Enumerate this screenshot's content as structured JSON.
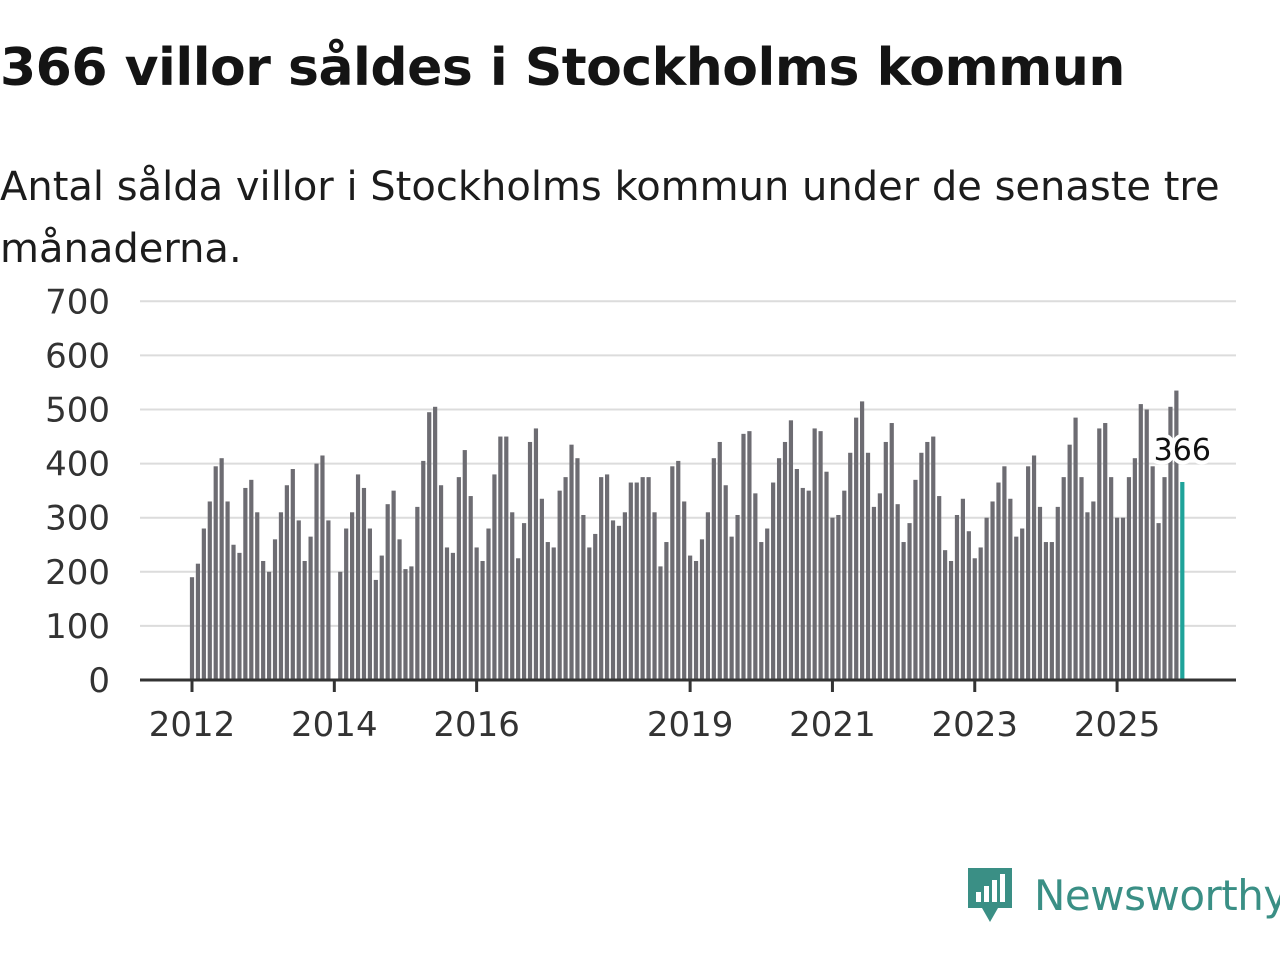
{
  "title": "366 villor såldes i Stockholms kommun",
  "subtitle": "Antal sålda villor i Stockholms kommun under de senaste tre månaderna.",
  "brand": {
    "name": "Newsworthy",
    "logo": "newsworthy-logo-icon",
    "color": "#3a8f85"
  },
  "colors": {
    "bar": "#6d6c72",
    "highlight": "#1fa39a"
  },
  "chart_data": {
    "type": "bar",
    "title": "366 villor såldes i Stockholms kommun",
    "xlabel": "",
    "ylabel": "",
    "ylim": [
      0,
      700
    ],
    "yticks": [
      0,
      100,
      200,
      300,
      400,
      500,
      600,
      700
    ],
    "grid": true,
    "x_start": "2012-01",
    "x_end": "2026-01",
    "xticks": [
      {
        "label": "2012",
        "year": 2012
      },
      {
        "label": "2014",
        "year": 2014
      },
      {
        "label": "2016",
        "year": 2016
      },
      {
        "label": "2019",
        "year": 2019
      },
      {
        "label": "2021",
        "year": 2021
      },
      {
        "label": "2023",
        "year": 2023
      },
      {
        "label": "2025",
        "year": 2025
      }
    ],
    "highlight_label": "366",
    "bars": [
      {
        "year": 2012,
        "month": 1,
        "value": 190
      },
      {
        "year": 2012,
        "month": 2,
        "value": 215
      },
      {
        "year": 2012,
        "month": 3,
        "value": 280
      },
      {
        "year": 2012,
        "month": 4,
        "value": 330
      },
      {
        "year": 2012,
        "month": 5,
        "value": 395
      },
      {
        "year": 2012,
        "month": 6,
        "value": 410
      },
      {
        "year": 2012,
        "month": 7,
        "value": 330
      },
      {
        "year": 2012,
        "month": 8,
        "value": 250
      },
      {
        "year": 2012,
        "month": 9,
        "value": 235
      },
      {
        "year": 2012,
        "month": 10,
        "value": 355
      },
      {
        "year": 2012,
        "month": 11,
        "value": 370
      },
      {
        "year": 2012,
        "month": 12,
        "value": 310
      },
      {
        "year": 2013,
        "month": 1,
        "value": 220
      },
      {
        "year": 2013,
        "month": 2,
        "value": 200
      },
      {
        "year": 2013,
        "month": 3,
        "value": 260
      },
      {
        "year": 2013,
        "month": 4,
        "value": 310
      },
      {
        "year": 2013,
        "month": 5,
        "value": 360
      },
      {
        "year": 2013,
        "month": 6,
        "value": 390
      },
      {
        "year": 2013,
        "month": 7,
        "value": 295
      },
      {
        "year": 2013,
        "month": 8,
        "value": 220
      },
      {
        "year": 2013,
        "month": 9,
        "value": 265
      },
      {
        "year": 2013,
        "month": 10,
        "value": 400
      },
      {
        "year": 2013,
        "month": 11,
        "value": 415
      },
      {
        "year": 2013,
        "month": 12,
        "value": 295
      },
      {
        "year": 2014,
        "month": 1,
        "value": 0
      },
      {
        "year": 2014,
        "month": 2,
        "value": 200
      },
      {
        "year": 2014,
        "month": 3,
        "value": 280
      },
      {
        "year": 2014,
        "month": 4,
        "value": 310
      },
      {
        "year": 2014,
        "month": 5,
        "value": 380
      },
      {
        "year": 2014,
        "month": 6,
        "value": 355
      },
      {
        "year": 2014,
        "month": 7,
        "value": 280
      },
      {
        "year": 2014,
        "month": 8,
        "value": 185
      },
      {
        "year": 2014,
        "month": 9,
        "value": 230
      },
      {
        "year": 2014,
        "month": 10,
        "value": 325
      },
      {
        "year": 2014,
        "month": 11,
        "value": 350
      },
      {
        "year": 2014,
        "month": 12,
        "value": 260
      },
      {
        "year": 2015,
        "month": 1,
        "value": 205
      },
      {
        "year": 2015,
        "month": 2,
        "value": 210
      },
      {
        "year": 2015,
        "month": 3,
        "value": 320
      },
      {
        "year": 2015,
        "month": 4,
        "value": 405
      },
      {
        "year": 2015,
        "month": 5,
        "value": 495
      },
      {
        "year": 2015,
        "month": 6,
        "value": 505
      },
      {
        "year": 2015,
        "month": 7,
        "value": 360
      },
      {
        "year": 2015,
        "month": 8,
        "value": 245
      },
      {
        "year": 2015,
        "month": 9,
        "value": 235
      },
      {
        "year": 2015,
        "month": 10,
        "value": 375
      },
      {
        "year": 2015,
        "month": 11,
        "value": 425
      },
      {
        "year": 2015,
        "month": 12,
        "value": 340
      },
      {
        "year": 2016,
        "month": 1,
        "value": 245
      },
      {
        "year": 2016,
        "month": 2,
        "value": 220
      },
      {
        "year": 2016,
        "month": 3,
        "value": 280
      },
      {
        "year": 2016,
        "month": 4,
        "value": 380
      },
      {
        "year": 2016,
        "month": 5,
        "value": 450
      },
      {
        "year": 2016,
        "month": 6,
        "value": 450
      },
      {
        "year": 2016,
        "month": 7,
        "value": 310
      },
      {
        "year": 2016,
        "month": 8,
        "value": 225
      },
      {
        "year": 2016,
        "month": 9,
        "value": 290
      },
      {
        "year": 2016,
        "month": 10,
        "value": 440
      },
      {
        "year": 2016,
        "month": 11,
        "value": 465
      },
      {
        "year": 2016,
        "month": 12,
        "value": 335
      },
      {
        "year": 2017,
        "month": 1,
        "value": 255
      },
      {
        "year": 2017,
        "month": 2,
        "value": 245
      },
      {
        "year": 2017,
        "month": 3,
        "value": 350
      },
      {
        "year": 2017,
        "month": 4,
        "value": 375
      },
      {
        "year": 2017,
        "month": 5,
        "value": 435
      },
      {
        "year": 2017,
        "month": 6,
        "value": 410
      },
      {
        "year": 2017,
        "month": 7,
        "value": 305
      },
      {
        "year": 2017,
        "month": 8,
        "value": 245
      },
      {
        "year": 2017,
        "month": 9,
        "value": 270
      },
      {
        "year": 2017,
        "month": 10,
        "value": 375
      },
      {
        "year": 2017,
        "month": 11,
        "value": 380
      },
      {
        "year": 2017,
        "month": 12,
        "value": 295
      },
      {
        "year": 2018,
        "month": 1,
        "value": 285
      },
      {
        "year": 2018,
        "month": 2,
        "value": 310
      },
      {
        "year": 2018,
        "month": 3,
        "value": 365
      },
      {
        "year": 2018,
        "month": 4,
        "value": 365
      },
      {
        "year": 2018,
        "month": 5,
        "value": 375
      },
      {
        "year": 2018,
        "month": 6,
        "value": 375
      },
      {
        "year": 2018,
        "month": 7,
        "value": 310
      },
      {
        "year": 2018,
        "month": 8,
        "value": 210
      },
      {
        "year": 2018,
        "month": 9,
        "value": 255
      },
      {
        "year": 2018,
        "month": 10,
        "value": 395
      },
      {
        "year": 2018,
        "month": 11,
        "value": 405
      },
      {
        "year": 2018,
        "month": 12,
        "value": 330
      },
      {
        "year": 2019,
        "month": 1,
        "value": 230
      },
      {
        "year": 2019,
        "month": 2,
        "value": 220
      },
      {
        "year": 2019,
        "month": 3,
        "value": 260
      },
      {
        "year": 2019,
        "month": 4,
        "value": 310
      },
      {
        "year": 2019,
        "month": 5,
        "value": 410
      },
      {
        "year": 2019,
        "month": 6,
        "value": 440
      },
      {
        "year": 2019,
        "month": 7,
        "value": 360
      },
      {
        "year": 2019,
        "month": 8,
        "value": 265
      },
      {
        "year": 2019,
        "month": 9,
        "value": 305
      },
      {
        "year": 2019,
        "month": 10,
        "value": 455
      },
      {
        "year": 2019,
        "month": 11,
        "value": 460
      },
      {
        "year": 2019,
        "month": 12,
        "value": 345
      },
      {
        "year": 2020,
        "month": 1,
        "value": 255
      },
      {
        "year": 2020,
        "month": 2,
        "value": 280
      },
      {
        "year": 2020,
        "month": 3,
        "value": 365
      },
      {
        "year": 2020,
        "month": 4,
        "value": 410
      },
      {
        "year": 2020,
        "month": 5,
        "value": 440
      },
      {
        "year": 2020,
        "month": 6,
        "value": 480
      },
      {
        "year": 2020,
        "month": 7,
        "value": 390
      },
      {
        "year": 2020,
        "month": 8,
        "value": 355
      },
      {
        "year": 2020,
        "month": 9,
        "value": 350
      },
      {
        "year": 2020,
        "month": 10,
        "value": 465
      },
      {
        "year": 2020,
        "month": 11,
        "value": 460
      },
      {
        "year": 2020,
        "month": 12,
        "value": 385
      },
      {
        "year": 2021,
        "month": 1,
        "value": 300
      },
      {
        "year": 2021,
        "month": 2,
        "value": 305
      },
      {
        "year": 2021,
        "month": 3,
        "value": 350
      },
      {
        "year": 2021,
        "month": 4,
        "value": 420
      },
      {
        "year": 2021,
        "month": 5,
        "value": 485
      },
      {
        "year": 2021,
        "month": 6,
        "value": 515
      },
      {
        "year": 2021,
        "month": 7,
        "value": 420
      },
      {
        "year": 2021,
        "month": 8,
        "value": 320
      },
      {
        "year": 2021,
        "month": 9,
        "value": 345
      },
      {
        "year": 2021,
        "month": 10,
        "value": 440
      },
      {
        "year": 2021,
        "month": 11,
        "value": 475
      },
      {
        "year": 2021,
        "month": 12,
        "value": 325
      },
      {
        "year": 2022,
        "month": 1,
        "value": 255
      },
      {
        "year": 2022,
        "month": 2,
        "value": 290
      },
      {
        "year": 2022,
        "month": 3,
        "value": 370
      },
      {
        "year": 2022,
        "month": 4,
        "value": 420
      },
      {
        "year": 2022,
        "month": 5,
        "value": 440
      },
      {
        "year": 2022,
        "month": 6,
        "value": 450
      },
      {
        "year": 2022,
        "month": 7,
        "value": 340
      },
      {
        "year": 2022,
        "month": 8,
        "value": 240
      },
      {
        "year": 2022,
        "month": 9,
        "value": 220
      },
      {
        "year": 2022,
        "month": 10,
        "value": 305
      },
      {
        "year": 2022,
        "month": 11,
        "value": 335
      },
      {
        "year": 2022,
        "month": 12,
        "value": 275
      },
      {
        "year": 2023,
        "month": 1,
        "value": 225
      },
      {
        "year": 2023,
        "month": 2,
        "value": 245
      },
      {
        "year": 2023,
        "month": 3,
        "value": 300
      },
      {
        "year": 2023,
        "month": 4,
        "value": 330
      },
      {
        "year": 2023,
        "month": 5,
        "value": 365
      },
      {
        "year": 2023,
        "month": 6,
        "value": 395
      },
      {
        "year": 2023,
        "month": 7,
        "value": 335
      },
      {
        "year": 2023,
        "month": 8,
        "value": 265
      },
      {
        "year": 2023,
        "month": 9,
        "value": 280
      },
      {
        "year": 2023,
        "month": 10,
        "value": 395
      },
      {
        "year": 2023,
        "month": 11,
        "value": 415
      },
      {
        "year": 2023,
        "month": 12,
        "value": 320
      },
      {
        "year": 2024,
        "month": 1,
        "value": 255
      },
      {
        "year": 2024,
        "month": 2,
        "value": 255
      },
      {
        "year": 2024,
        "month": 3,
        "value": 320
      },
      {
        "year": 2024,
        "month": 4,
        "value": 375
      },
      {
        "year": 2024,
        "month": 5,
        "value": 435
      },
      {
        "year": 2024,
        "month": 6,
        "value": 485
      },
      {
        "year": 2024,
        "month": 7,
        "value": 375
      },
      {
        "year": 2024,
        "month": 8,
        "value": 310
      },
      {
        "year": 2024,
        "month": 9,
        "value": 330
      },
      {
        "year": 2024,
        "month": 10,
        "value": 465
      },
      {
        "year": 2024,
        "month": 11,
        "value": 475
      },
      {
        "year": 2024,
        "month": 12,
        "value": 375
      },
      {
        "year": 2025,
        "month": 1,
        "value": 300
      },
      {
        "year": 2025,
        "month": 2,
        "value": 300
      },
      {
        "year": 2025,
        "month": 3,
        "value": 375
      },
      {
        "year": 2025,
        "month": 4,
        "value": 410
      },
      {
        "year": 2025,
        "month": 5,
        "value": 510
      },
      {
        "year": 2025,
        "month": 6,
        "value": 500
      },
      {
        "year": 2025,
        "month": 7,
        "value": 395
      },
      {
        "year": 2025,
        "month": 8,
        "value": 290
      },
      {
        "year": 2025,
        "month": 9,
        "value": 375
      },
      {
        "year": 2025,
        "month": 10,
        "value": 505
      },
      {
        "year": 2025,
        "month": 11,
        "value": 535
      },
      {
        "year": 2025,
        "month": 12,
        "value": 366
      }
    ]
  }
}
